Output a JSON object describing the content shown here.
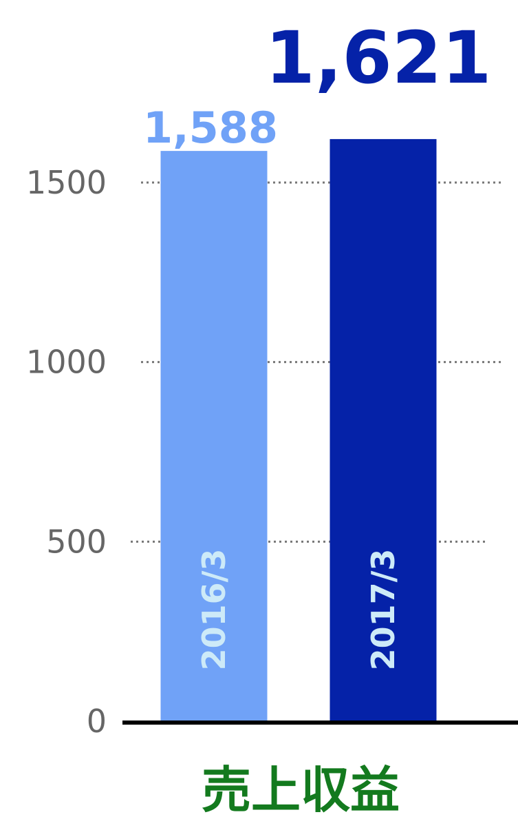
{
  "chart_data": {
    "type": "bar",
    "categories": [
      "2016/3",
      "2017/3"
    ],
    "values": [
      1588,
      1621
    ],
    "value_labels": [
      "1,588",
      "1,621"
    ],
    "xlabel": "売上収益",
    "ylabel": "",
    "ylim": [
      0,
      1700
    ],
    "yticks": [
      0,
      500,
      1000,
      1500
    ],
    "ytick_labels": [
      "0",
      "500",
      "1000",
      "1500"
    ],
    "grid": "horizontal dotted",
    "bar_colors": [
      "#70a2f7",
      "#0522a8"
    ],
    "value_label_colors": [
      "#70a2f7",
      "#0522a8"
    ],
    "category_label_color": "#cdeaf8",
    "xlabel_color": "#137a1e",
    "grid_color": "#777777",
    "tick_color": "#666666",
    "axis_color": "#000000"
  }
}
